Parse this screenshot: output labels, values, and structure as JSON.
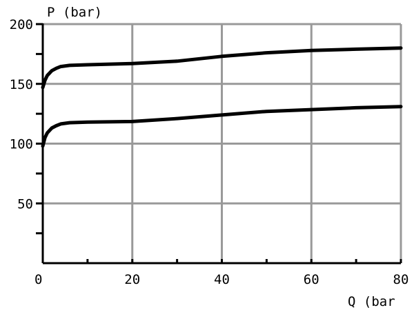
{
  "chart_data": {
    "type": "line",
    "title": "",
    "xlabel": "Q (bar",
    "ylabel": "P (bar)",
    "xlim": [
      0,
      80
    ],
    "ylim": [
      0,
      200
    ],
    "x_ticks": [
      0,
      20,
      40,
      60,
      80
    ],
    "x_tick_labels": [
      "0",
      "20",
      "40",
      "60",
      "80"
    ],
    "y_ticks": [
      50,
      100,
      150,
      200
    ],
    "y_tick_labels": [
      "50",
      "100",
      "150",
      "200"
    ],
    "grid": true,
    "series": [
      {
        "x": [
          0,
          0.5,
          1,
          2,
          3,
          4,
          6,
          10,
          20,
          30,
          40,
          50,
          60,
          70,
          80
        ],
        "y": [
          147,
          153,
          157,
          161,
          163,
          164.5,
          165.5,
          166,
          167,
          169,
          173,
          176,
          178,
          179,
          180
        ]
      },
      {
        "x": [
          0,
          0.5,
          1,
          2,
          3,
          4,
          6,
          10,
          20,
          30,
          40,
          50,
          60,
          70,
          80
        ],
        "y": [
          98,
          105,
          109,
          113,
          115,
          116.5,
          117.5,
          118,
          118.5,
          121,
          124,
          127,
          128.5,
          130,
          131
        ]
      }
    ],
    "colors": {
      "grid": "#999999",
      "axis": "#000000",
      "line": "#000000"
    }
  }
}
